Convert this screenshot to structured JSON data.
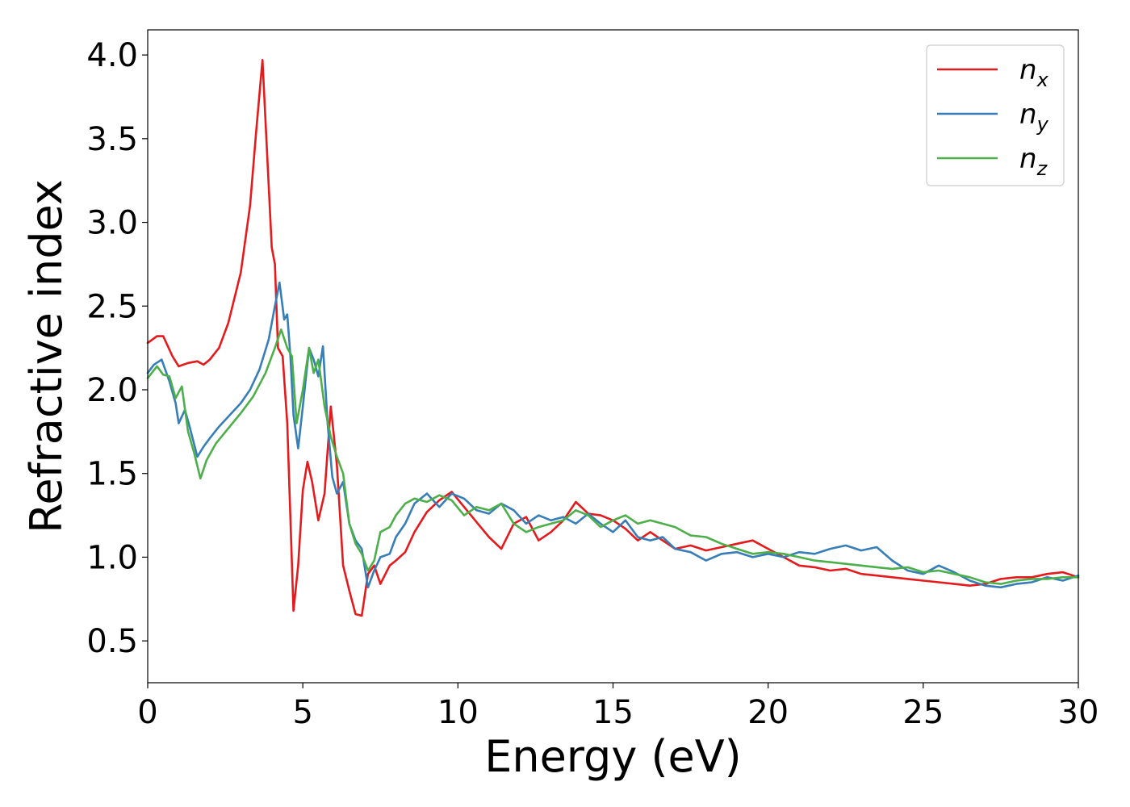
{
  "chart_data": {
    "type": "line",
    "title": "",
    "xlabel": "Energy (eV)",
    "ylabel": "Refractive index",
    "xlim": [
      0,
      30
    ],
    "ylim": [
      0.25,
      4.15
    ],
    "xticks": [
      0,
      5,
      10,
      15,
      20,
      25,
      30
    ],
    "yticks": [
      0.5,
      1.0,
      1.5,
      2.0,
      2.5,
      3.0,
      3.5,
      4.0
    ],
    "xtick_labels": [
      "0",
      "5",
      "10",
      "15",
      "20",
      "25",
      "30"
    ],
    "ytick_labels": [
      "0.5",
      "1.0",
      "1.5",
      "2.0",
      "2.5",
      "3.0",
      "3.5",
      "4.0"
    ],
    "grid": false,
    "legend_position": "top-right",
    "series": [
      {
        "name": "n_x",
        "label_base": "n",
        "label_sub": "x",
        "color": "#e41a1c",
        "x": [
          0,
          0.3,
          0.5,
          0.8,
          1.0,
          1.3,
          1.6,
          1.8,
          2.0,
          2.3,
          2.6,
          3.0,
          3.3,
          3.5,
          3.7,
          3.8,
          4.0,
          4.1,
          4.2,
          4.35,
          4.5,
          4.7,
          4.85,
          5.0,
          5.15,
          5.3,
          5.5,
          5.7,
          5.9,
          6.1,
          6.3,
          6.5,
          6.7,
          6.9,
          7.1,
          7.3,
          7.5,
          7.8,
          8.0,
          8.3,
          8.6,
          9.0,
          9.4,
          9.8,
          10.2,
          10.6,
          11.0,
          11.4,
          11.8,
          12.2,
          12.6,
          13.0,
          13.4,
          13.8,
          14.2,
          14.6,
          15.0,
          15.4,
          15.8,
          16.2,
          16.6,
          17.0,
          17.5,
          18.0,
          18.5,
          19.0,
          19.5,
          20.0,
          20.5,
          21.0,
          21.5,
          22.0,
          22.5,
          23.0,
          23.5,
          24.0,
          24.5,
          25.0,
          25.5,
          26.0,
          26.5,
          27.0,
          27.5,
          28.0,
          28.5,
          29.0,
          29.5,
          30.0
        ],
        "y": [
          2.28,
          2.32,
          2.32,
          2.2,
          2.14,
          2.16,
          2.17,
          2.15,
          2.18,
          2.25,
          2.4,
          2.7,
          3.1,
          3.55,
          3.97,
          3.6,
          2.85,
          2.75,
          2.25,
          2.2,
          1.8,
          0.68,
          0.95,
          1.4,
          1.57,
          1.45,
          1.22,
          1.38,
          1.9,
          1.55,
          0.95,
          0.8,
          0.66,
          0.65,
          0.9,
          0.95,
          0.84,
          0.95,
          0.98,
          1.03,
          1.15,
          1.27,
          1.34,
          1.39,
          1.3,
          1.21,
          1.12,
          1.05,
          1.2,
          1.24,
          1.1,
          1.15,
          1.22,
          1.33,
          1.26,
          1.25,
          1.22,
          1.17,
          1.1,
          1.15,
          1.1,
          1.05,
          1.07,
          1.04,
          1.06,
          1.08,
          1.1,
          1.05,
          1.0,
          0.95,
          0.94,
          0.92,
          0.93,
          0.9,
          0.89,
          0.88,
          0.87,
          0.86,
          0.85,
          0.84,
          0.83,
          0.84,
          0.87,
          0.88,
          0.88,
          0.9,
          0.91,
          0.88
        ]
      },
      {
        "name": "n_y",
        "label_base": "n",
        "label_sub": "y",
        "color": "#377eb8",
        "x": [
          0,
          0.2,
          0.45,
          0.7,
          0.9,
          1.0,
          1.2,
          1.35,
          1.6,
          1.8,
          2.0,
          2.3,
          2.6,
          3.0,
          3.3,
          3.6,
          3.9,
          4.1,
          4.25,
          4.4,
          4.5,
          4.6,
          4.7,
          4.85,
          5.0,
          5.2,
          5.35,
          5.5,
          5.65,
          5.8,
          5.95,
          6.1,
          6.3,
          6.5,
          6.7,
          6.9,
          7.1,
          7.3,
          7.5,
          7.8,
          8.0,
          8.3,
          8.6,
          9.0,
          9.4,
          9.8,
          10.2,
          10.6,
          11.0,
          11.4,
          11.8,
          12.2,
          12.6,
          13.0,
          13.4,
          13.8,
          14.2,
          14.6,
          15.0,
          15.4,
          15.8,
          16.2,
          16.6,
          17.0,
          17.5,
          18.0,
          18.5,
          19.0,
          19.5,
          20.0,
          20.5,
          21.0,
          21.5,
          22.0,
          22.5,
          23.0,
          23.5,
          24.0,
          24.5,
          25.0,
          25.5,
          26.0,
          26.5,
          27.0,
          27.5,
          28.0,
          28.5,
          29.0,
          29.5,
          30.0
        ],
        "y": [
          2.1,
          2.15,
          2.18,
          2.05,
          1.92,
          1.8,
          1.88,
          1.78,
          1.6,
          1.66,
          1.71,
          1.78,
          1.84,
          1.92,
          2.0,
          2.12,
          2.3,
          2.5,
          2.64,
          2.42,
          2.45,
          2.2,
          1.85,
          1.65,
          1.9,
          2.25,
          2.18,
          2.08,
          2.26,
          1.8,
          1.48,
          1.38,
          1.45,
          1.2,
          1.1,
          1.05,
          0.82,
          0.92,
          1.0,
          1.02,
          1.12,
          1.2,
          1.32,
          1.38,
          1.3,
          1.38,
          1.35,
          1.28,
          1.26,
          1.32,
          1.28,
          1.2,
          1.25,
          1.22,
          1.24,
          1.2,
          1.26,
          1.2,
          1.15,
          1.22,
          1.12,
          1.1,
          1.12,
          1.05,
          1.03,
          0.98,
          1.02,
          1.03,
          1.0,
          1.02,
          1.0,
          1.03,
          1.02,
          1.05,
          1.07,
          1.04,
          1.06,
          0.98,
          0.92,
          0.9,
          0.95,
          0.91,
          0.86,
          0.83,
          0.82,
          0.84,
          0.85,
          0.88,
          0.86,
          0.89
        ]
      },
      {
        "name": "n_z",
        "label_base": "n",
        "label_sub": "z",
        "color": "#4daf4a",
        "x": [
          0,
          0.3,
          0.5,
          0.7,
          0.9,
          1.1,
          1.3,
          1.5,
          1.7,
          1.9,
          2.2,
          2.6,
          3.0,
          3.4,
          3.8,
          4.1,
          4.3,
          4.5,
          4.65,
          4.8,
          5.0,
          5.2,
          5.35,
          5.5,
          5.7,
          5.9,
          6.1,
          6.3,
          6.5,
          6.7,
          6.9,
          7.1,
          7.3,
          7.5,
          7.8,
          8.0,
          8.3,
          8.6,
          9.0,
          9.4,
          9.8,
          10.2,
          10.6,
          11.0,
          11.4,
          11.8,
          12.2,
          12.6,
          13.0,
          13.4,
          13.8,
          14.2,
          14.6,
          15.0,
          15.4,
          15.8,
          16.2,
          16.6,
          17.0,
          17.5,
          18.0,
          18.5,
          19.0,
          19.5,
          20.0,
          20.5,
          21.0,
          21.5,
          22.0,
          22.5,
          23.0,
          23.5,
          24.0,
          24.5,
          25.0,
          25.5,
          26.0,
          26.5,
          27.0,
          27.5,
          28.0,
          28.5,
          29.0,
          29.5,
          30.0
        ],
        "y": [
          2.07,
          2.14,
          2.09,
          2.08,
          1.95,
          2.02,
          1.75,
          1.62,
          1.47,
          1.58,
          1.68,
          1.77,
          1.86,
          1.96,
          2.1,
          2.25,
          2.36,
          2.25,
          2.2,
          1.8,
          2.0,
          2.25,
          2.1,
          2.18,
          1.9,
          1.72,
          1.6,
          1.5,
          1.2,
          1.08,
          1.02,
          0.92,
          0.98,
          1.15,
          1.18,
          1.25,
          1.32,
          1.35,
          1.33,
          1.37,
          1.34,
          1.25,
          1.3,
          1.28,
          1.32,
          1.2,
          1.15,
          1.18,
          1.2,
          1.22,
          1.28,
          1.25,
          1.18,
          1.22,
          1.25,
          1.2,
          1.22,
          1.2,
          1.18,
          1.13,
          1.12,
          1.08,
          1.05,
          1.02,
          1.03,
          1.02,
          1.0,
          0.98,
          0.97,
          0.96,
          0.95,
          0.94,
          0.93,
          0.94,
          0.91,
          0.92,
          0.9,
          0.88,
          0.85,
          0.84,
          0.86,
          0.87,
          0.87,
          0.88,
          0.88
        ]
      }
    ]
  }
}
